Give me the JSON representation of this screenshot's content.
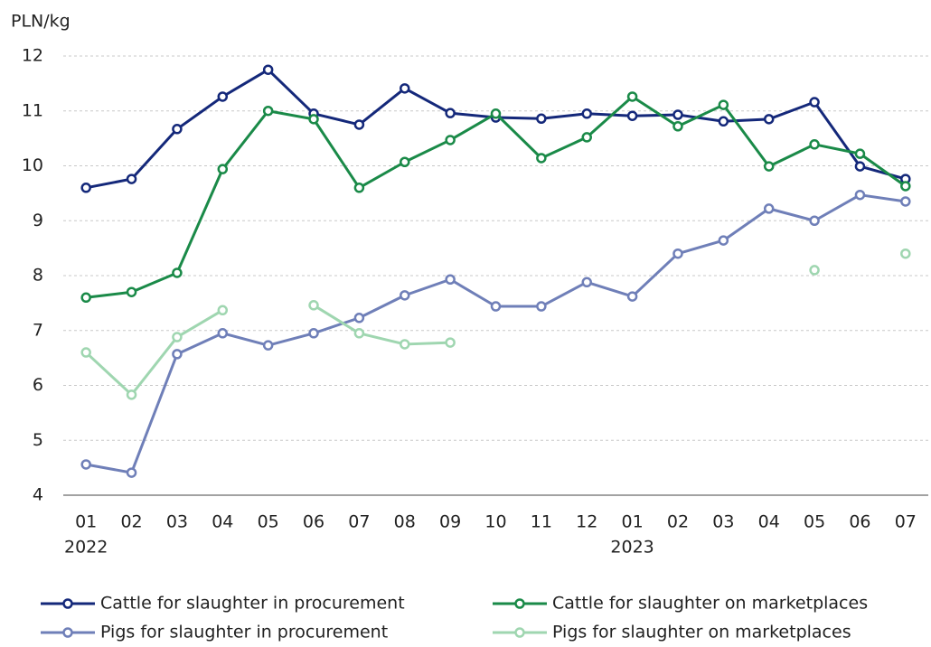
{
  "chart_data": {
    "type": "line",
    "y_axis_label": "PLN/kg",
    "categories": [
      "01",
      "02",
      "03",
      "04",
      "05",
      "06",
      "07",
      "08",
      "09",
      "10",
      "11",
      "12",
      "01",
      "02",
      "03",
      "04",
      "05",
      "06",
      "07"
    ],
    "category_years": [
      "2022",
      null,
      null,
      null,
      null,
      null,
      null,
      null,
      null,
      null,
      null,
      null,
      "2023",
      null,
      null,
      null,
      null,
      null,
      null
    ],
    "ylim": [
      4,
      12
    ],
    "yticks": [
      4,
      5,
      6,
      7,
      8,
      9,
      10,
      11,
      12
    ],
    "grid": true,
    "legend": "bottom",
    "series": [
      {
        "name": "Cattle for slaughter in procurement",
        "color": "#14287a",
        "values": [
          9.6,
          9.76,
          10.67,
          11.26,
          11.75,
          10.95,
          10.75,
          11.41,
          10.96,
          10.88,
          10.86,
          10.95,
          10.91,
          10.93,
          10.81,
          10.85,
          11.16,
          9.99,
          9.76
        ]
      },
      {
        "name": "Cattle for slaughter on marketplaces",
        "color": "#1a8a48",
        "values": [
          7.6,
          7.7,
          8.05,
          9.94,
          11.0,
          10.85,
          9.6,
          10.07,
          10.47,
          10.95,
          10.14,
          10.52,
          11.26,
          10.72,
          11.11,
          9.99,
          10.39,
          10.22,
          9.63
        ]
      },
      {
        "name": "Pigs for slaughter in procurement",
        "color": "#6f7fb8",
        "values": [
          4.56,
          4.41,
          6.57,
          6.95,
          6.73,
          6.95,
          7.23,
          7.64,
          7.93,
          7.44,
          7.44,
          7.88,
          7.62,
          8.4,
          8.64,
          9.22,
          9.0,
          9.47,
          9.35
        ]
      },
      {
        "name": "Pigs for slaughter on marketplaces",
        "color": "#9fd6b0",
        "values": [
          6.6,
          5.83,
          6.88,
          7.37,
          null,
          7.46,
          6.95,
          6.75,
          6.78,
          null,
          null,
          null,
          null,
          null,
          null,
          null,
          8.1,
          null,
          8.4
        ]
      }
    ]
  }
}
